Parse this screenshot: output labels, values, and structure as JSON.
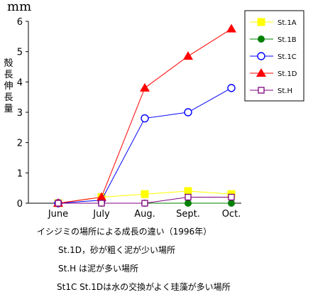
{
  "chart_data": {
    "type": "line",
    "unit_label": "mm",
    "ylabel": "殻長伸長量",
    "categories": [
      "June",
      "July",
      "Aug.",
      "Sept.",
      "Oct."
    ],
    "ylim": [
      0,
      6
    ],
    "yticks": [
      0,
      1,
      2,
      3,
      4,
      5,
      6
    ],
    "grid": false,
    "legend_position": "top-right",
    "series": [
      {
        "name": "St.1A",
        "color": "#ffff00",
        "marker": "square",
        "values": [
          0,
          0.2,
          0.3,
          0.4,
          0.3
        ]
      },
      {
        "name": "St.1B",
        "color": "#008000",
        "marker": "circle-filled",
        "values": [
          0,
          0,
          0,
          0,
          0
        ]
      },
      {
        "name": "St.1C",
        "color": "#0000ff",
        "marker": "circle-open",
        "values": [
          0,
          0.1,
          2.8,
          3.0,
          3.8
        ]
      },
      {
        "name": "St.1D",
        "color": "#ff0000",
        "marker": "triangle",
        "values": [
          0,
          0.2,
          3.8,
          4.85,
          5.75
        ]
      },
      {
        "name": "St.H",
        "color": "#800080",
        "marker": "square-open",
        "values": [
          0,
          0,
          0,
          0.2,
          0.2
        ]
      }
    ]
  },
  "captions": {
    "title": "イシジミの場所による成長の違い（1996年）",
    "line1": "St.1D，砂が粗く泥が少い場所",
    "line2": "St.H は泥が多い場所",
    "line3": "St1C St.1Dは水の交換がよく珪藻が多い場所"
  }
}
